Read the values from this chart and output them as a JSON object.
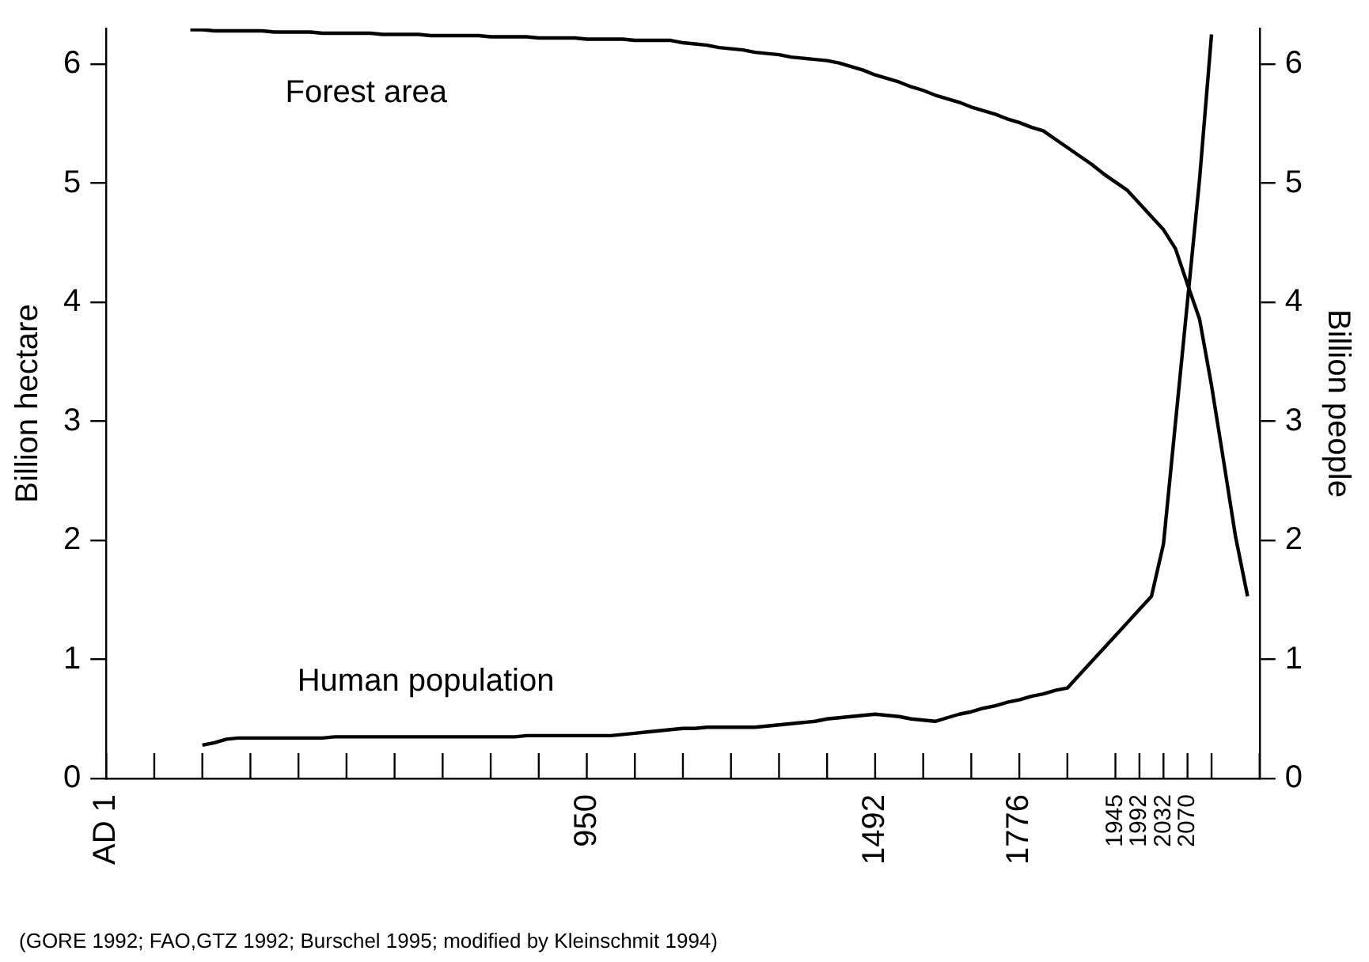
{
  "chart_data": {
    "type": "line",
    "ylabel": "Billion hectare",
    "y2label": "Billion people",
    "categories": [
      "AD 1",
      null,
      null,
      null,
      null,
      null,
      null,
      null,
      null,
      null,
      null,
      null,
      null,
      null,
      null,
      null,
      null,
      null,
      null,
      null,
      null,
      null,
      null,
      null,
      null,
      null,
      null,
      null,
      null,
      null,
      null,
      null,
      null,
      null,
      null,
      null,
      null,
      null,
      null,
      null,
      "950",
      null,
      null,
      null,
      null,
      null,
      null,
      null,
      null,
      null,
      null,
      null,
      null,
      null,
      null,
      null,
      null,
      null,
      null,
      null,
      null,
      null,
      null,
      null,
      "1492",
      null,
      null,
      null,
      null,
      null,
      null,
      null,
      null,
      null,
      null,
      null,
      "1776",
      null,
      null,
      null,
      null,
      null,
      null,
      null,
      "1945",
      null,
      "1992",
      null,
      "2032",
      null,
      "2070",
      null,
      null,
      null,
      null,
      null,
      null
    ],
    "series": [
      {
        "name": "Forest area",
        "color": "#000000",
        "values": [
          null,
          null,
          null,
          null,
          null,
          null,
          null,
          6.29,
          6.29,
          6.28,
          6.28,
          6.28,
          6.28,
          6.28,
          6.27,
          6.27,
          6.27,
          6.27,
          6.26,
          6.26,
          6.26,
          6.26,
          6.26,
          6.25,
          6.25,
          6.25,
          6.25,
          6.24,
          6.24,
          6.24,
          6.24,
          6.24,
          6.23,
          6.23,
          6.23,
          6.23,
          6.22,
          6.22,
          6.22,
          6.22,
          6.21,
          6.21,
          6.21,
          6.21,
          6.2,
          6.2,
          6.2,
          6.2,
          6.18,
          6.17,
          6.16,
          6.14,
          6.13,
          6.12,
          6.1,
          6.09,
          6.08,
          6.06,
          6.05,
          6.04,
          6.03,
          6.01,
          5.98,
          5.95,
          5.91,
          5.88,
          5.85,
          5.81,
          5.78,
          5.74,
          5.71,
          5.68,
          5.64,
          5.61,
          5.58,
          5.54,
          5.51,
          5.47,
          5.44,
          5.37,
          5.3,
          5.23,
          5.16,
          5.08,
          5.01,
          4.94,
          4.83,
          4.72,
          4.61,
          4.45,
          4.15,
          3.86,
          3.3,
          2.67,
          2.03,
          1.53,
          null
        ]
      },
      {
        "name": "Human population",
        "color": "#000000",
        "axis": "y2",
        "values": [
          null,
          null,
          null,
          null,
          null,
          null,
          null,
          null,
          0.28,
          0.3,
          0.33,
          0.34,
          0.34,
          0.34,
          0.34,
          0.34,
          0.34,
          0.34,
          0.34,
          0.35,
          0.35,
          0.35,
          0.35,
          0.35,
          0.35,
          0.35,
          0.35,
          0.35,
          0.35,
          0.35,
          0.35,
          0.35,
          0.35,
          0.35,
          0.35,
          0.36,
          0.36,
          0.36,
          0.36,
          0.36,
          0.36,
          0.36,
          0.36,
          0.37,
          0.38,
          0.39,
          0.4,
          0.41,
          0.42,
          0.42,
          0.43,
          0.43,
          0.43,
          0.43,
          0.43,
          0.44,
          0.45,
          0.46,
          0.47,
          0.48,
          0.5,
          0.51,
          0.52,
          0.53,
          0.54,
          0.53,
          0.52,
          0.5,
          0.49,
          0.48,
          0.51,
          0.54,
          0.56,
          0.59,
          0.61,
          0.64,
          0.66,
          0.69,
          0.71,
          0.74,
          0.76,
          0.87,
          0.98,
          1.09,
          1.2,
          1.31,
          1.42,
          1.53,
          1.97,
          2.99,
          4.01,
          5.03,
          6.25,
          null,
          null,
          null,
          null
        ]
      }
    ],
    "ylim": [
      0,
      6.3
    ],
    "yticks": [
      0,
      1,
      2,
      3,
      4,
      5,
      6
    ],
    "y2lim": [
      0,
      6.3
    ],
    "y2ticks": [
      0,
      1,
      2,
      3,
      4,
      5,
      6
    ],
    "annotations": [
      "(GORE 1992; FAO,GTZ 1992; Burschel 1995; modified by Kleinschmit 1994)"
    ],
    "grid": false,
    "legend": false,
    "marker": "none",
    "line_style": "solid"
  }
}
